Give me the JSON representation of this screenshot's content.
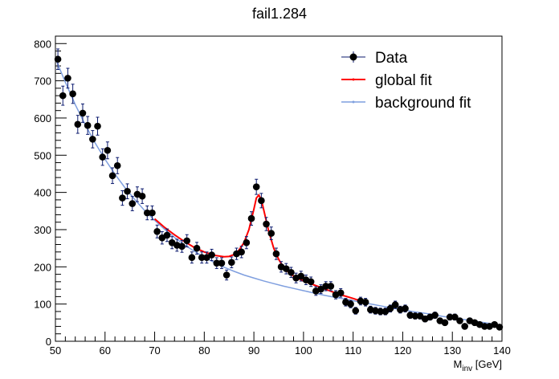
{
  "chart_data": {
    "type": "scatter",
    "title": "fail1.284",
    "xlabel": "M",
    "xlabel_sub": "inv",
    "xlabel_unit": " [GeV]",
    "ylabel": "",
    "xlim": [
      50,
      140
    ],
    "ylim": [
      0,
      820
    ],
    "x_ticks": [
      50,
      60,
      70,
      80,
      90,
      100,
      110,
      120,
      130,
      140
    ],
    "y_ticks": [
      0,
      100,
      200,
      300,
      400,
      500,
      600,
      700,
      800
    ],
    "grid": false,
    "legend_position": "top-right",
    "colors": {
      "data": "#000000",
      "data_line": "#0b1a6e",
      "global_fit": "#ff0000",
      "background_fit": "#7f9fdf"
    },
    "series": [
      {
        "name": "Data",
        "kind": "points_with_errors",
        "x": [
          50.5,
          51.5,
          52.5,
          53.5,
          54.5,
          55.5,
          56.5,
          57.5,
          58.5,
          59.5,
          60.5,
          61.5,
          62.5,
          63.5,
          64.5,
          65.5,
          66.5,
          67.5,
          68.5,
          69.5,
          70.5,
          71.5,
          72.5,
          73.5,
          74.5,
          75.5,
          76.5,
          77.5,
          78.5,
          79.5,
          80.5,
          81.5,
          82.5,
          83.5,
          84.5,
          85.5,
          86.5,
          87.5,
          88.5,
          89.5,
          90.5,
          91.5,
          92.5,
          93.5,
          94.5,
          95.5,
          96.5,
          97.5,
          98.5,
          99.5,
          100.5,
          101.5,
          102.5,
          103.5,
          104.5,
          105.5,
          106.5,
          107.5,
          108.5,
          109.5,
          110.5,
          111.5,
          112.5,
          113.5,
          114.5,
          115.5,
          116.5,
          117.5,
          118.5,
          119.5,
          120.5,
          121.5,
          122.5,
          123.5,
          124.5,
          125.5,
          126.5,
          127.5,
          128.5,
          129.5,
          130.5,
          131.5,
          132.5,
          133.5,
          134.5,
          135.5,
          136.5,
          137.5,
          138.5,
          139.5
        ],
        "y": [
          758,
          660,
          707,
          665,
          583,
          613,
          580,
          543,
          578,
          495,
          513,
          445,
          472,
          385,
          403,
          370,
          395,
          390,
          345,
          345,
          295,
          278,
          285,
          265,
          258,
          255,
          270,
          225,
          250,
          225,
          225,
          232,
          210,
          210,
          178,
          212,
          235,
          240,
          265,
          330,
          415,
          378,
          315,
          290,
          235,
          200,
          195,
          185,
          170,
          175,
          165,
          160,
          135,
          140,
          148,
          148,
          125,
          130,
          105,
          100,
          82,
          108,
          105,
          85,
          82,
          80,
          80,
          88,
          98,
          85,
          88,
          70,
          68,
          68,
          60,
          65,
          70,
          55,
          50,
          65,
          65,
          55,
          40,
          55,
          50,
          45,
          40,
          40,
          45,
          38
        ]
      },
      {
        "name": "global fit",
        "kind": "line",
        "x": [
          50,
          52,
          54,
          56,
          58,
          60,
          62,
          64,
          66,
          68,
          70,
          72,
          74,
          76,
          78,
          80,
          82,
          84,
          85,
          86,
          87,
          88,
          89,
          90,
          90.5,
          91,
          91.5,
          92,
          93,
          94,
          95,
          96,
          97,
          98,
          100,
          102,
          104,
          106,
          108,
          110,
          112,
          114,
          116,
          118,
          120,
          122,
          124,
          126,
          128,
          130,
          132,
          134,
          136,
          138,
          140
        ],
        "y": [
          765,
          700,
          640,
          585,
          536,
          492,
          452,
          416,
          384,
          355,
          329,
          306,
          286,
          268,
          252,
          240,
          231,
          227,
          228,
          233,
          245,
          265,
          300,
          355,
          385,
          393,
          380,
          352,
          295,
          250,
          220,
          198,
          185,
          175,
          162,
          152,
          142,
          132,
          123,
          115,
          106,
          99,
          92,
          86,
          80,
          75,
          70,
          65,
          60,
          56,
          52,
          49,
          46,
          43,
          40
        ]
      },
      {
        "name": "background fit",
        "kind": "line",
        "x": [
          50,
          52,
          54,
          56,
          58,
          60,
          62,
          64,
          66,
          68,
          70,
          72,
          74,
          76,
          78,
          80,
          82,
          84,
          86,
          88,
          90,
          92,
          94,
          96,
          98,
          100,
          102,
          104,
          106,
          108,
          110,
          112,
          114,
          116,
          118,
          120,
          122,
          124,
          126,
          128,
          130,
          132,
          134,
          136,
          138,
          140
        ],
        "y": [
          760,
          696,
          636,
          582,
          533,
          489,
          449,
          413,
          381,
          351,
          325,
          301,
          279,
          259,
          242,
          226,
          212,
          199,
          188,
          178,
          170,
          162,
          155,
          148,
          142,
          136,
          130,
          124,
          119,
          114,
          109,
          104,
          99,
          94,
          89,
          85,
          80,
          76,
          72,
          67,
          63,
          59,
          55,
          51,
          47,
          43
        ]
      }
    ]
  }
}
